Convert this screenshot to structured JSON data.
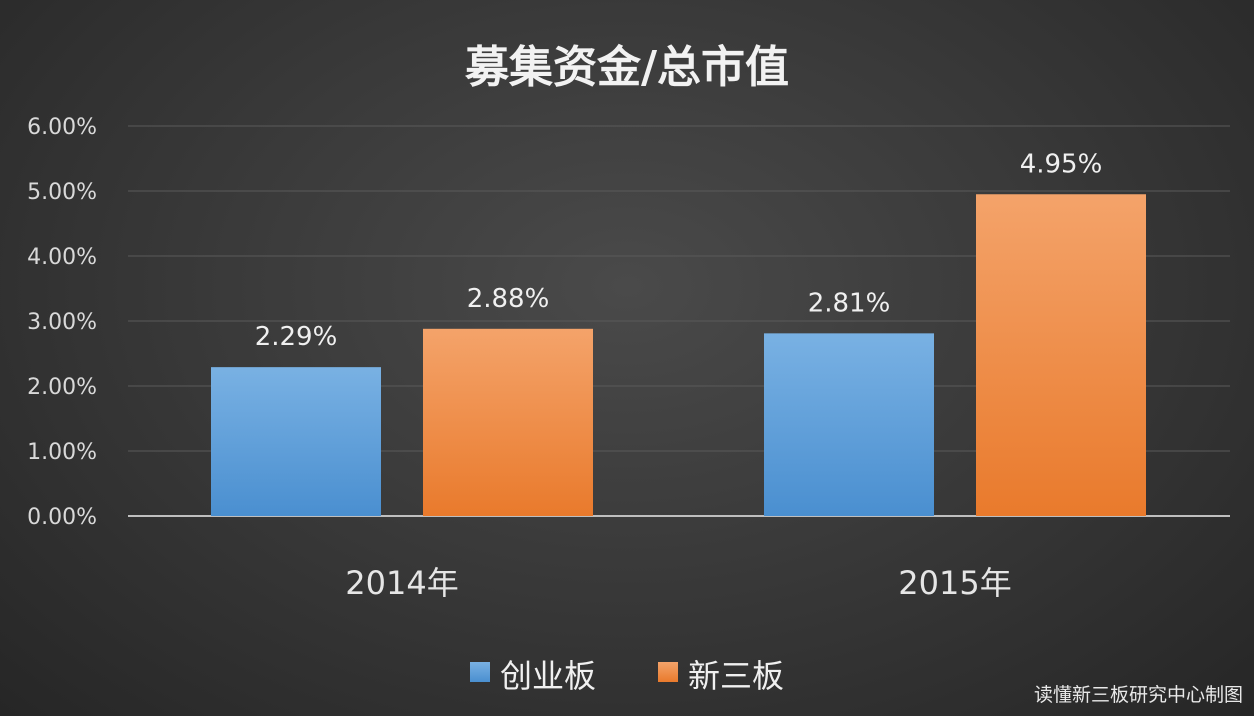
{
  "chart_data": {
    "type": "bar",
    "title": "募集资金/总市值",
    "categories": [
      "2014年",
      "2015年"
    ],
    "series": [
      {
        "name": "创业板",
        "values": [
          2.29,
          2.81
        ],
        "labels": [
          "2.29%",
          "2.81%"
        ],
        "color": "#5b9bd5"
      },
      {
        "name": "新三板",
        "values": [
          2.88,
          4.95
        ],
        "labels": [
          "2.88%",
          "4.95%"
        ],
        "color": "#ed7d31"
      }
    ],
    "ylim": [
      0,
      6
    ],
    "yticks": [
      0,
      1,
      2,
      3,
      4,
      5,
      6
    ],
    "ytick_labels": [
      "0.00%",
      "1.00%",
      "2.00%",
      "3.00%",
      "4.00%",
      "5.00%",
      "6.00%"
    ],
    "grid": true,
    "legend_position": "bottom"
  },
  "source_note": "读懂新三板研究中心制图"
}
